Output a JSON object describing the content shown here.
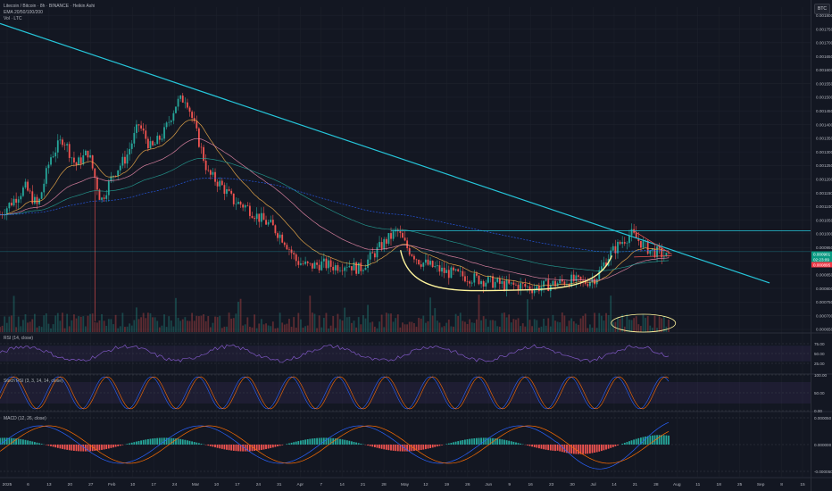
{
  "header": {
    "symbol_title": "Litecoin / Bitcoin · 8h · BINANCE · Heikin Ashi",
    "ema_label": "EMA 20/50/100/200",
    "vol_label": "Vol · LTC",
    "currency_button": "BTC"
  },
  "price_axis": {
    "ticks": [
      "0.001800",
      "0.001750",
      "0.001700",
      "0.001650",
      "0.001600",
      "0.001550",
      "0.001500",
      "0.001450",
      "0.001400",
      "0.001350",
      "0.001300",
      "0.001250",
      "0.001200",
      "0.001150",
      "0.001100",
      "0.001050",
      "0.001000",
      "0.000950",
      "0.000900",
      "0.000850",
      "0.000800",
      "0.000750",
      "0.000700",
      "0.000650"
    ],
    "current_price_label": "0.000913",
    "current_price_color": "#26a69a",
    "price_tags": [
      {
        "text": "0.000901",
        "color": "#089981"
      },
      {
        "text": "02:23:09",
        "color": "#089981"
      },
      {
        "text": "0.000895",
        "color": "#f23645"
      }
    ]
  },
  "time_axis": {
    "labels": [
      "2025",
      "6",
      "13",
      "20",
      "27",
      "Feb",
      "10",
      "17",
      "24",
      "Mar",
      "10",
      "17",
      "24",
      "31",
      "Apr",
      "7",
      "14",
      "21",
      "28",
      "May",
      "12",
      "19",
      "26",
      "Jun",
      "9",
      "16",
      "23",
      "30",
      "Jul",
      "14",
      "21",
      "28",
      "Aug",
      "11",
      "18",
      "25",
      "Sep",
      "8",
      "15"
    ]
  },
  "panes": {
    "rsi": {
      "title": "RSI (14, close)",
      "ticks": [
        "75.00",
        "50.00",
        "25.00"
      ]
    },
    "stoch": {
      "title": "Stoch RSI (3, 3, 14, 14, close)",
      "ticks": [
        "100.00",
        "50.00",
        "0.00"
      ]
    },
    "macd": {
      "title": "MACD (12, 26, close)",
      "ticks": [
        "0.000050",
        "0.000000",
        "-0.000050"
      ]
    }
  },
  "chart_data": [
    {
      "type": "candlestick",
      "title": "Litecoin / Bitcoin · 8h · BINANCE · Heikin Ashi",
      "ylim": [
        0.00064,
        0.00183
      ],
      "x_range": [
        "2025-01-01",
        "2025-09-15"
      ],
      "price_path": [
        [
          "2025-01-01",
          0.00107
        ],
        [
          "2025-01-05",
          0.00112
        ],
        [
          "2025-01-09",
          0.00117
        ],
        [
          "2025-01-13",
          0.0011
        ],
        [
          "2025-01-17",
          0.00128
        ],
        [
          "2025-01-21",
          0.00135
        ],
        [
          "2025-01-25",
          0.00125
        ],
        [
          "2025-01-29",
          0.0013
        ],
        [
          "2025-02-02",
          0.00112
        ],
        [
          "2025-02-06",
          0.00122
        ],
        [
          "2025-02-10",
          0.00128
        ],
        [
          "2025-02-14",
          0.0014
        ],
        [
          "2025-02-18",
          0.00131
        ],
        [
          "2025-02-22",
          0.00137
        ],
        [
          "2025-02-26",
          0.00148
        ],
        [
          "2025-03-01",
          0.0015
        ],
        [
          "2025-03-04",
          0.00138
        ],
        [
          "2025-03-08",
          0.00122
        ],
        [
          "2025-03-12",
          0.00118
        ],
        [
          "2025-03-16",
          0.00112
        ],
        [
          "2025-03-20",
          0.0011
        ],
        [
          "2025-03-24",
          0.00106
        ],
        [
          "2025-03-28",
          0.00103
        ],
        [
          "2025-04-01",
          0.00098
        ],
        [
          "2025-04-05",
          0.0009
        ],
        [
          "2025-04-09",
          0.00088
        ],
        [
          "2025-04-13",
          0.00089
        ],
        [
          "2025-04-17",
          0.00088
        ],
        [
          "2025-04-21",
          0.00089
        ],
        [
          "2025-04-25",
          0.00087
        ],
        [
          "2025-04-29",
          0.00092
        ],
        [
          "2025-05-03",
          0.00097
        ],
        [
          "2025-05-07",
          0.00101
        ],
        [
          "2025-05-10",
          0.00095
        ],
        [
          "2025-05-14",
          0.0009
        ],
        [
          "2025-05-18",
          0.00088
        ],
        [
          "2025-05-22",
          0.00086
        ],
        [
          "2025-05-26",
          0.00085
        ],
        [
          "2025-05-30",
          0.00084
        ],
        [
          "2025-06-03",
          0.00083
        ],
        [
          "2025-06-07",
          0.00082
        ],
        [
          "2025-06-11",
          0.00081
        ],
        [
          "2025-06-15",
          0.00081
        ],
        [
          "2025-06-19",
          0.0008
        ],
        [
          "2025-06-23",
          0.00081
        ],
        [
          "2025-06-27",
          0.00082
        ],
        [
          "2025-07-01",
          0.00083
        ],
        [
          "2025-07-05",
          0.00082
        ],
        [
          "2025-07-09",
          0.00084
        ],
        [
          "2025-07-13",
          0.00092
        ],
        [
          "2025-07-17",
          0.00097
        ],
        [
          "2025-07-20",
          0.001
        ],
        [
          "2025-07-23",
          0.00097
        ],
        [
          "2025-07-26",
          0.00094
        ],
        [
          "2025-07-29",
          0.00093
        ],
        [
          "2025-08-01",
          0.00091
        ]
      ],
      "spike_low": {
        "date": "2025-02-01",
        "value": 0.00068
      },
      "current_price": 0.000913,
      "annotations": {
        "descending_trendline": [
          [
            "2025-01-01",
            0.00177
          ],
          [
            "2025-09-02",
            0.00082
          ]
        ],
        "horizontal_resistance": 0.001011,
        "horizontal_support": 0.000935,
        "rounded_bottom": "yellow curve May–Jul",
        "triangle": "late Jul – early Aug",
        "circled_volume": "Jul–Aug volume"
      },
      "series": [
        {
          "name": "EMA 20",
          "color": "#ffb74d"
        },
        {
          "name": "EMA 50",
          "color": "#f48fb1"
        },
        {
          "name": "EMA 100",
          "color": "#26a69a"
        },
        {
          "name": "EMA 200",
          "color": "#2962ff"
        }
      ]
    },
    {
      "type": "area",
      "title": "RSI (14, close)",
      "ylim": [
        0,
        100
      ],
      "bands": [
        30,
        70
      ],
      "value": 46
    },
    {
      "type": "line",
      "title": "Stoch RSI (3, 3, 14, 14, close)",
      "ylim": [
        0,
        100
      ],
      "bands": [
        20,
        80
      ],
      "value": 62
    },
    {
      "type": "bar",
      "title": "MACD (12, 26, close)",
      "ylim": [
        -6e-05,
        6e-05
      ],
      "value": -4e-06
    }
  ],
  "colors": {
    "background": "#131722",
    "grid": "#1e222d",
    "up": "#26a69a",
    "down": "#ef5350",
    "trendline": "#26c6da",
    "curve": "#fff59d"
  }
}
